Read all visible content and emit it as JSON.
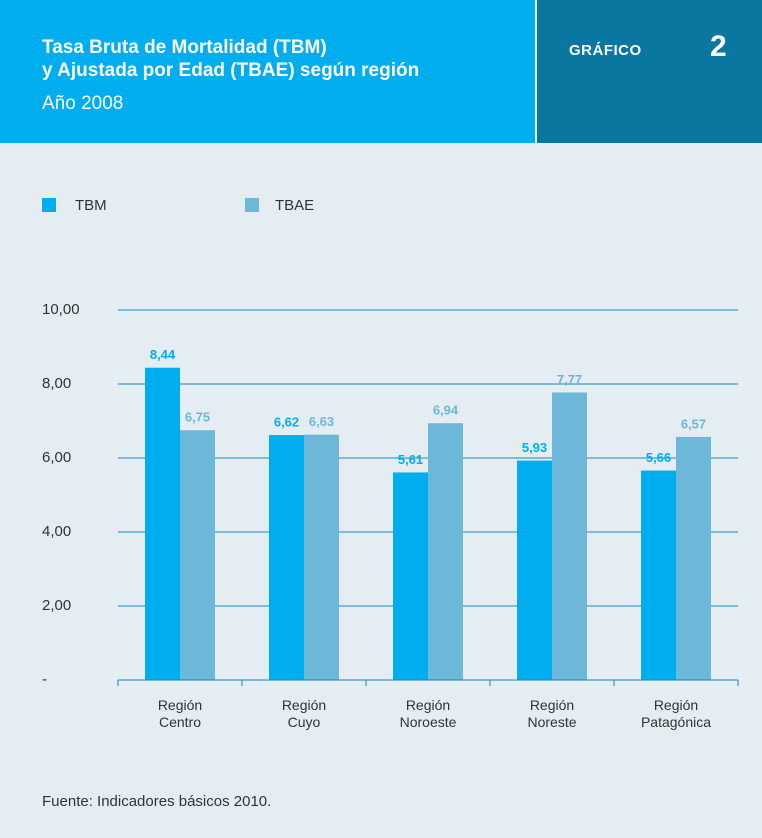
{
  "header": {
    "badge": "GRÁFICO",
    "number": "2"
  },
  "chart_data": {
    "type": "bar",
    "title": "Tasa Bruta de Mortalidad (TBM)\ny Ajustada por Edad (TBAE) según región",
    "subtitle": "Año 2008",
    "categories": [
      "Región\nCentro",
      "Región\nCuyo",
      "Región\nNoroeste",
      "Región\nNoreste",
      "Región\nPatagónica"
    ],
    "series": [
      {
        "name": "TBM",
        "color": "#00aeef",
        "values": [
          8.44,
          6.62,
          5.61,
          5.93,
          5.66
        ],
        "value_labels": [
          "8,44",
          "6,62",
          "5,61",
          "5,93",
          "5,66"
        ]
      },
      {
        "name": "TBAE",
        "color": "#6db7d8",
        "values": [
          6.75,
          6.63,
          6.94,
          7.77,
          6.57
        ],
        "value_labels": [
          "6,75",
          "6,63",
          "6,94",
          "7,77",
          "6,57"
        ]
      }
    ],
    "ylim": [
      0,
      10
    ],
    "yticks": [
      {
        "value": 0,
        "label": "-"
      },
      {
        "value": 2,
        "label": "2,00"
      },
      {
        "value": 4,
        "label": "4,00"
      },
      {
        "value": 6,
        "label": "6,00"
      },
      {
        "value": 8,
        "label": "8,00"
      },
      {
        "value": 10,
        "label": "10,00"
      }
    ],
    "grid": true,
    "legend": "top-left",
    "source": "Fuente: Indicadores básicos 2010."
  }
}
